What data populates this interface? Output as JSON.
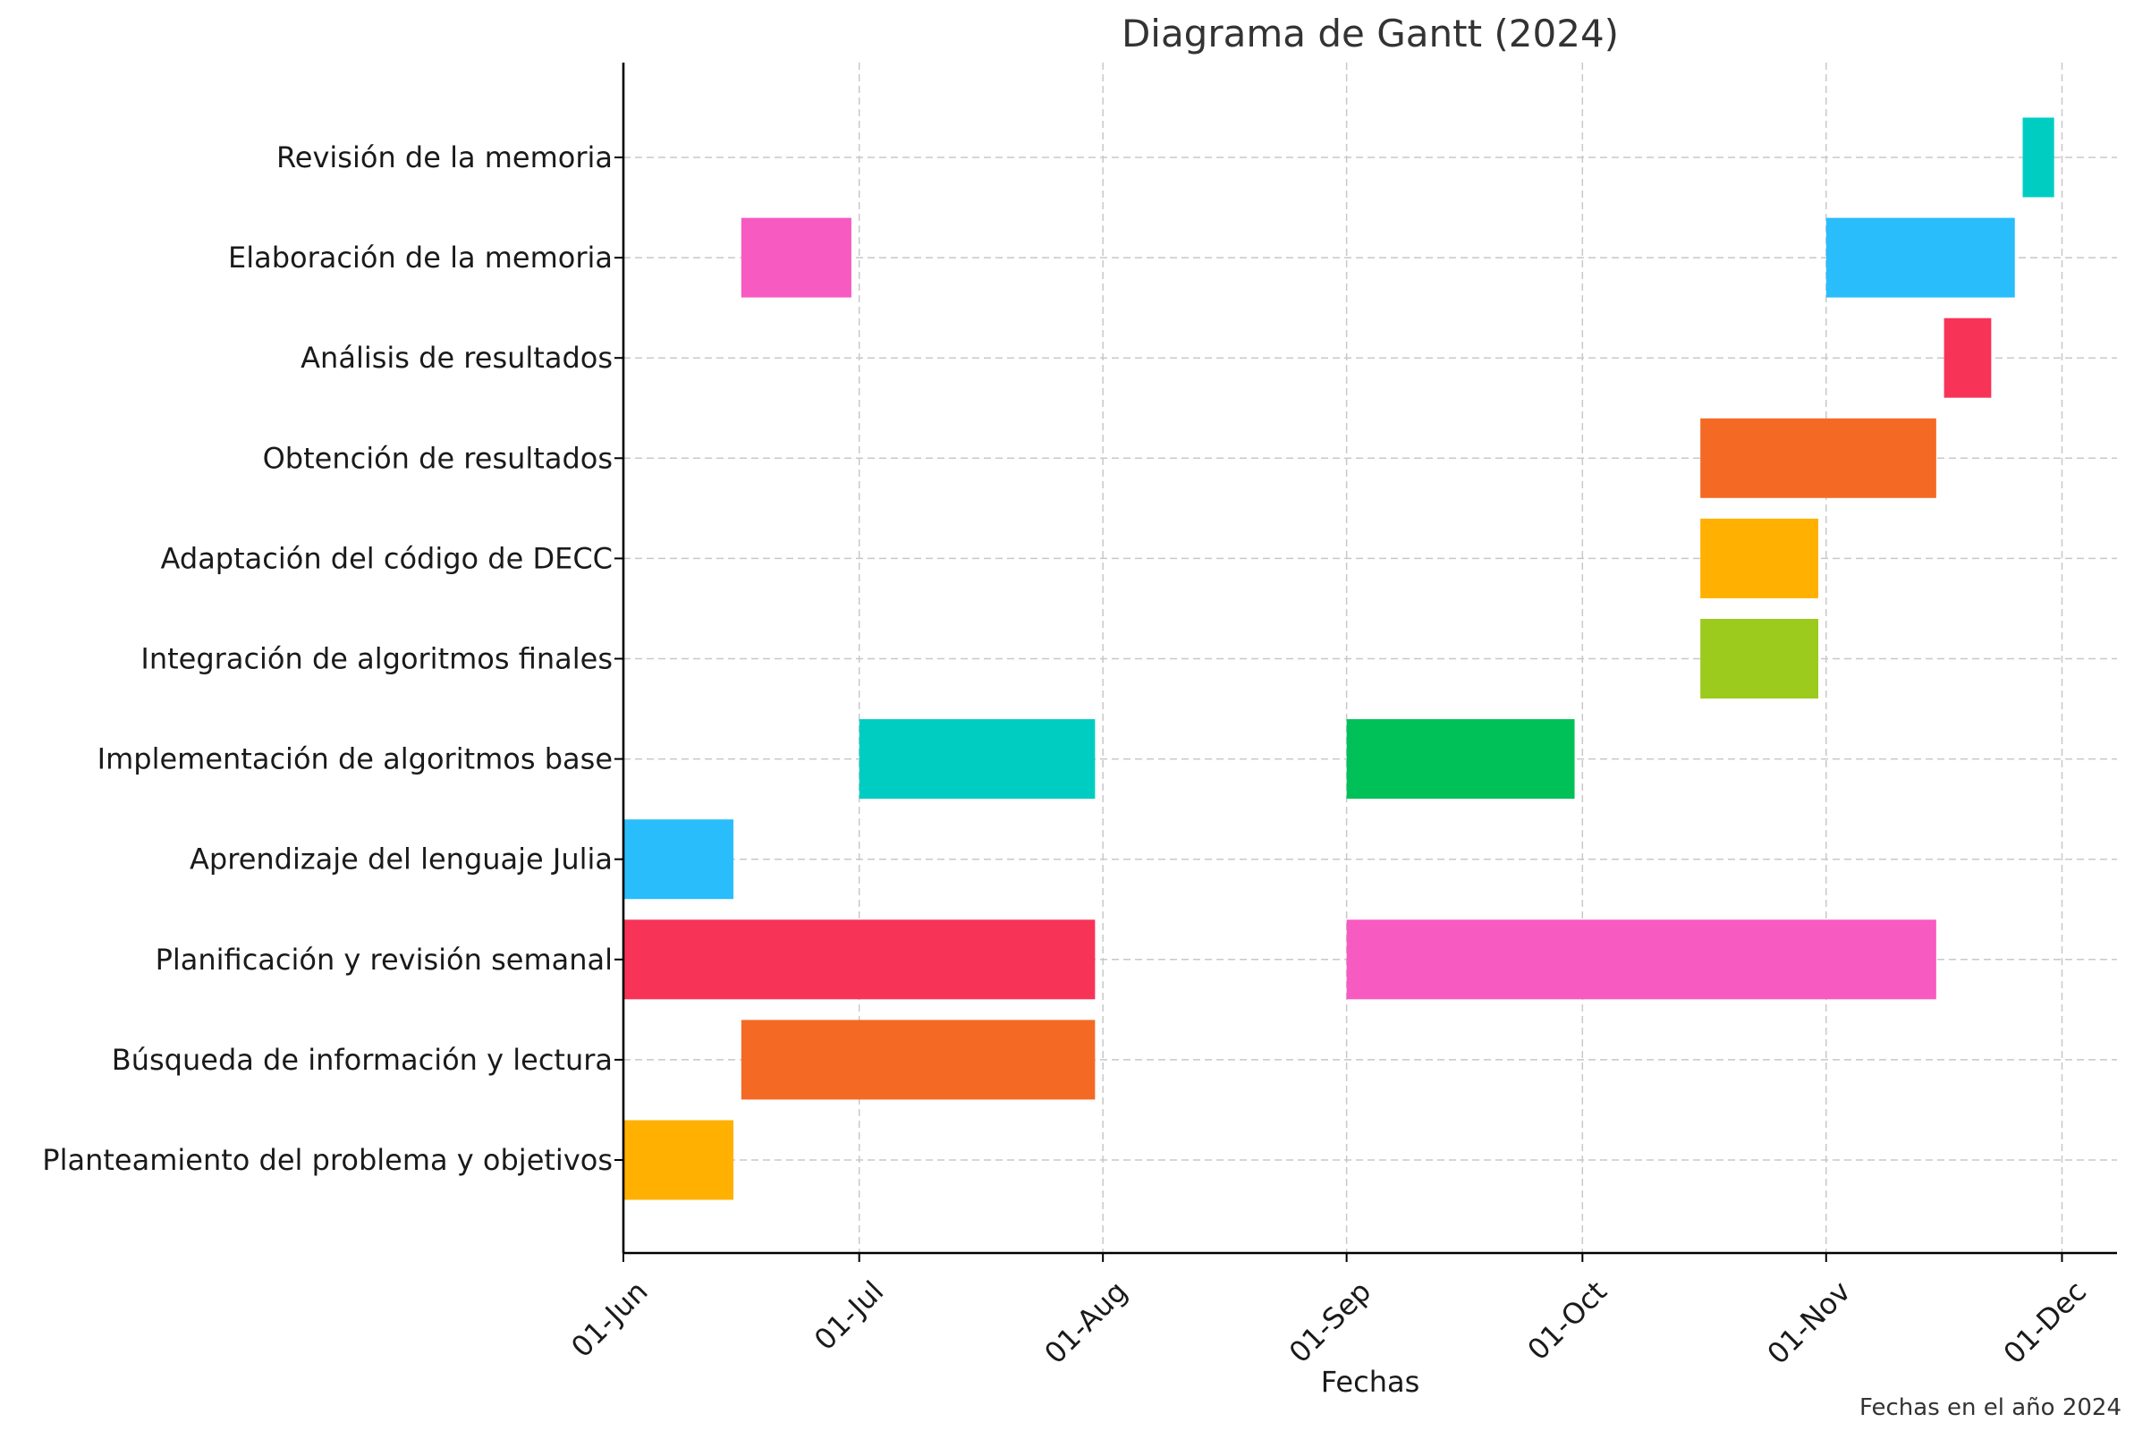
{
  "chart_data": {
    "type": "bar",
    "orientation": "horizontal-gantt",
    "title": "Diagrama de Gantt (2024)",
    "xlabel": "Fechas",
    "ylabel": "",
    "note": "Fechas en el año 2024",
    "grid": true,
    "xlim": [
      "2024-06-01",
      "2024-12-08"
    ],
    "x_ticks": [
      {
        "date": "2024-06-01",
        "label": "01-Jun"
      },
      {
        "date": "2024-07-01",
        "label": "01-Jul"
      },
      {
        "date": "2024-08-01",
        "label": "01-Aug"
      },
      {
        "date": "2024-09-01",
        "label": "01-Sep"
      },
      {
        "date": "2024-10-01",
        "label": "01-Oct"
      },
      {
        "date": "2024-11-01",
        "label": "01-Nov"
      },
      {
        "date": "2024-12-01",
        "label": "01-Dec"
      }
    ],
    "categories": [
      "Planteamiento del problema y objetivos",
      "Búsqueda de información y lectura",
      "Planificación y revisión semanal",
      "Aprendizaje del lenguaje Julia",
      "Implementación de algoritmos base",
      "Integración de algoritmos finales",
      "Adaptación del código de DECC",
      "Obtención de resultados",
      "Análisis de resultados",
      "Elaboración de la memoria",
      "Revisión de la memoria"
    ],
    "tasks": [
      {
        "category": "Planteamiento del problema y objetivos",
        "start": "2024-06-01",
        "end": "2024-06-15",
        "color": "#FFB000"
      },
      {
        "category": "Búsqueda de información y lectura",
        "start": "2024-06-16",
        "end": "2024-07-31",
        "color": "#F46A25"
      },
      {
        "category": "Planificación y revisión semanal",
        "start": "2024-06-01",
        "end": "2024-07-31",
        "color": "#F73358"
      },
      {
        "category": "Planificación y revisión semanal",
        "start": "2024-09-01",
        "end": "2024-11-15",
        "color": "#F75AC1"
      },
      {
        "category": "Aprendizaje del lenguaje Julia",
        "start": "2024-06-01",
        "end": "2024-06-15",
        "color": "#29BDFB"
      },
      {
        "category": "Implementación de algoritmos base",
        "start": "2024-07-01",
        "end": "2024-07-31",
        "color": "#00CDC1"
      },
      {
        "category": "Implementación de algoritmos base",
        "start": "2024-09-01",
        "end": "2024-09-30",
        "color": "#00C158"
      },
      {
        "category": "Integración de algoritmos finales",
        "start": "2024-10-16",
        "end": "2024-10-31",
        "color": "#9CCA1D"
      },
      {
        "category": "Adaptación del código de DECC",
        "start": "2024-10-16",
        "end": "2024-10-31",
        "color": "#FFB000"
      },
      {
        "category": "Obtención de resultados",
        "start": "2024-10-16",
        "end": "2024-11-15",
        "color": "#F46A25"
      },
      {
        "category": "Análisis de resultados",
        "start": "2024-11-16",
        "end": "2024-11-22",
        "color": "#F73358"
      },
      {
        "category": "Elaboración de la memoria",
        "start": "2024-06-16",
        "end": "2024-06-30",
        "color": "#F75AC1"
      },
      {
        "category": "Elaboración de la memoria",
        "start": "2024-11-01",
        "end": "2024-11-25",
        "color": "#29BDFB"
      },
      {
        "category": "Revisión de la memoria",
        "start": "2024-11-26",
        "end": "2024-11-30",
        "color": "#00CDC1"
      }
    ]
  }
}
